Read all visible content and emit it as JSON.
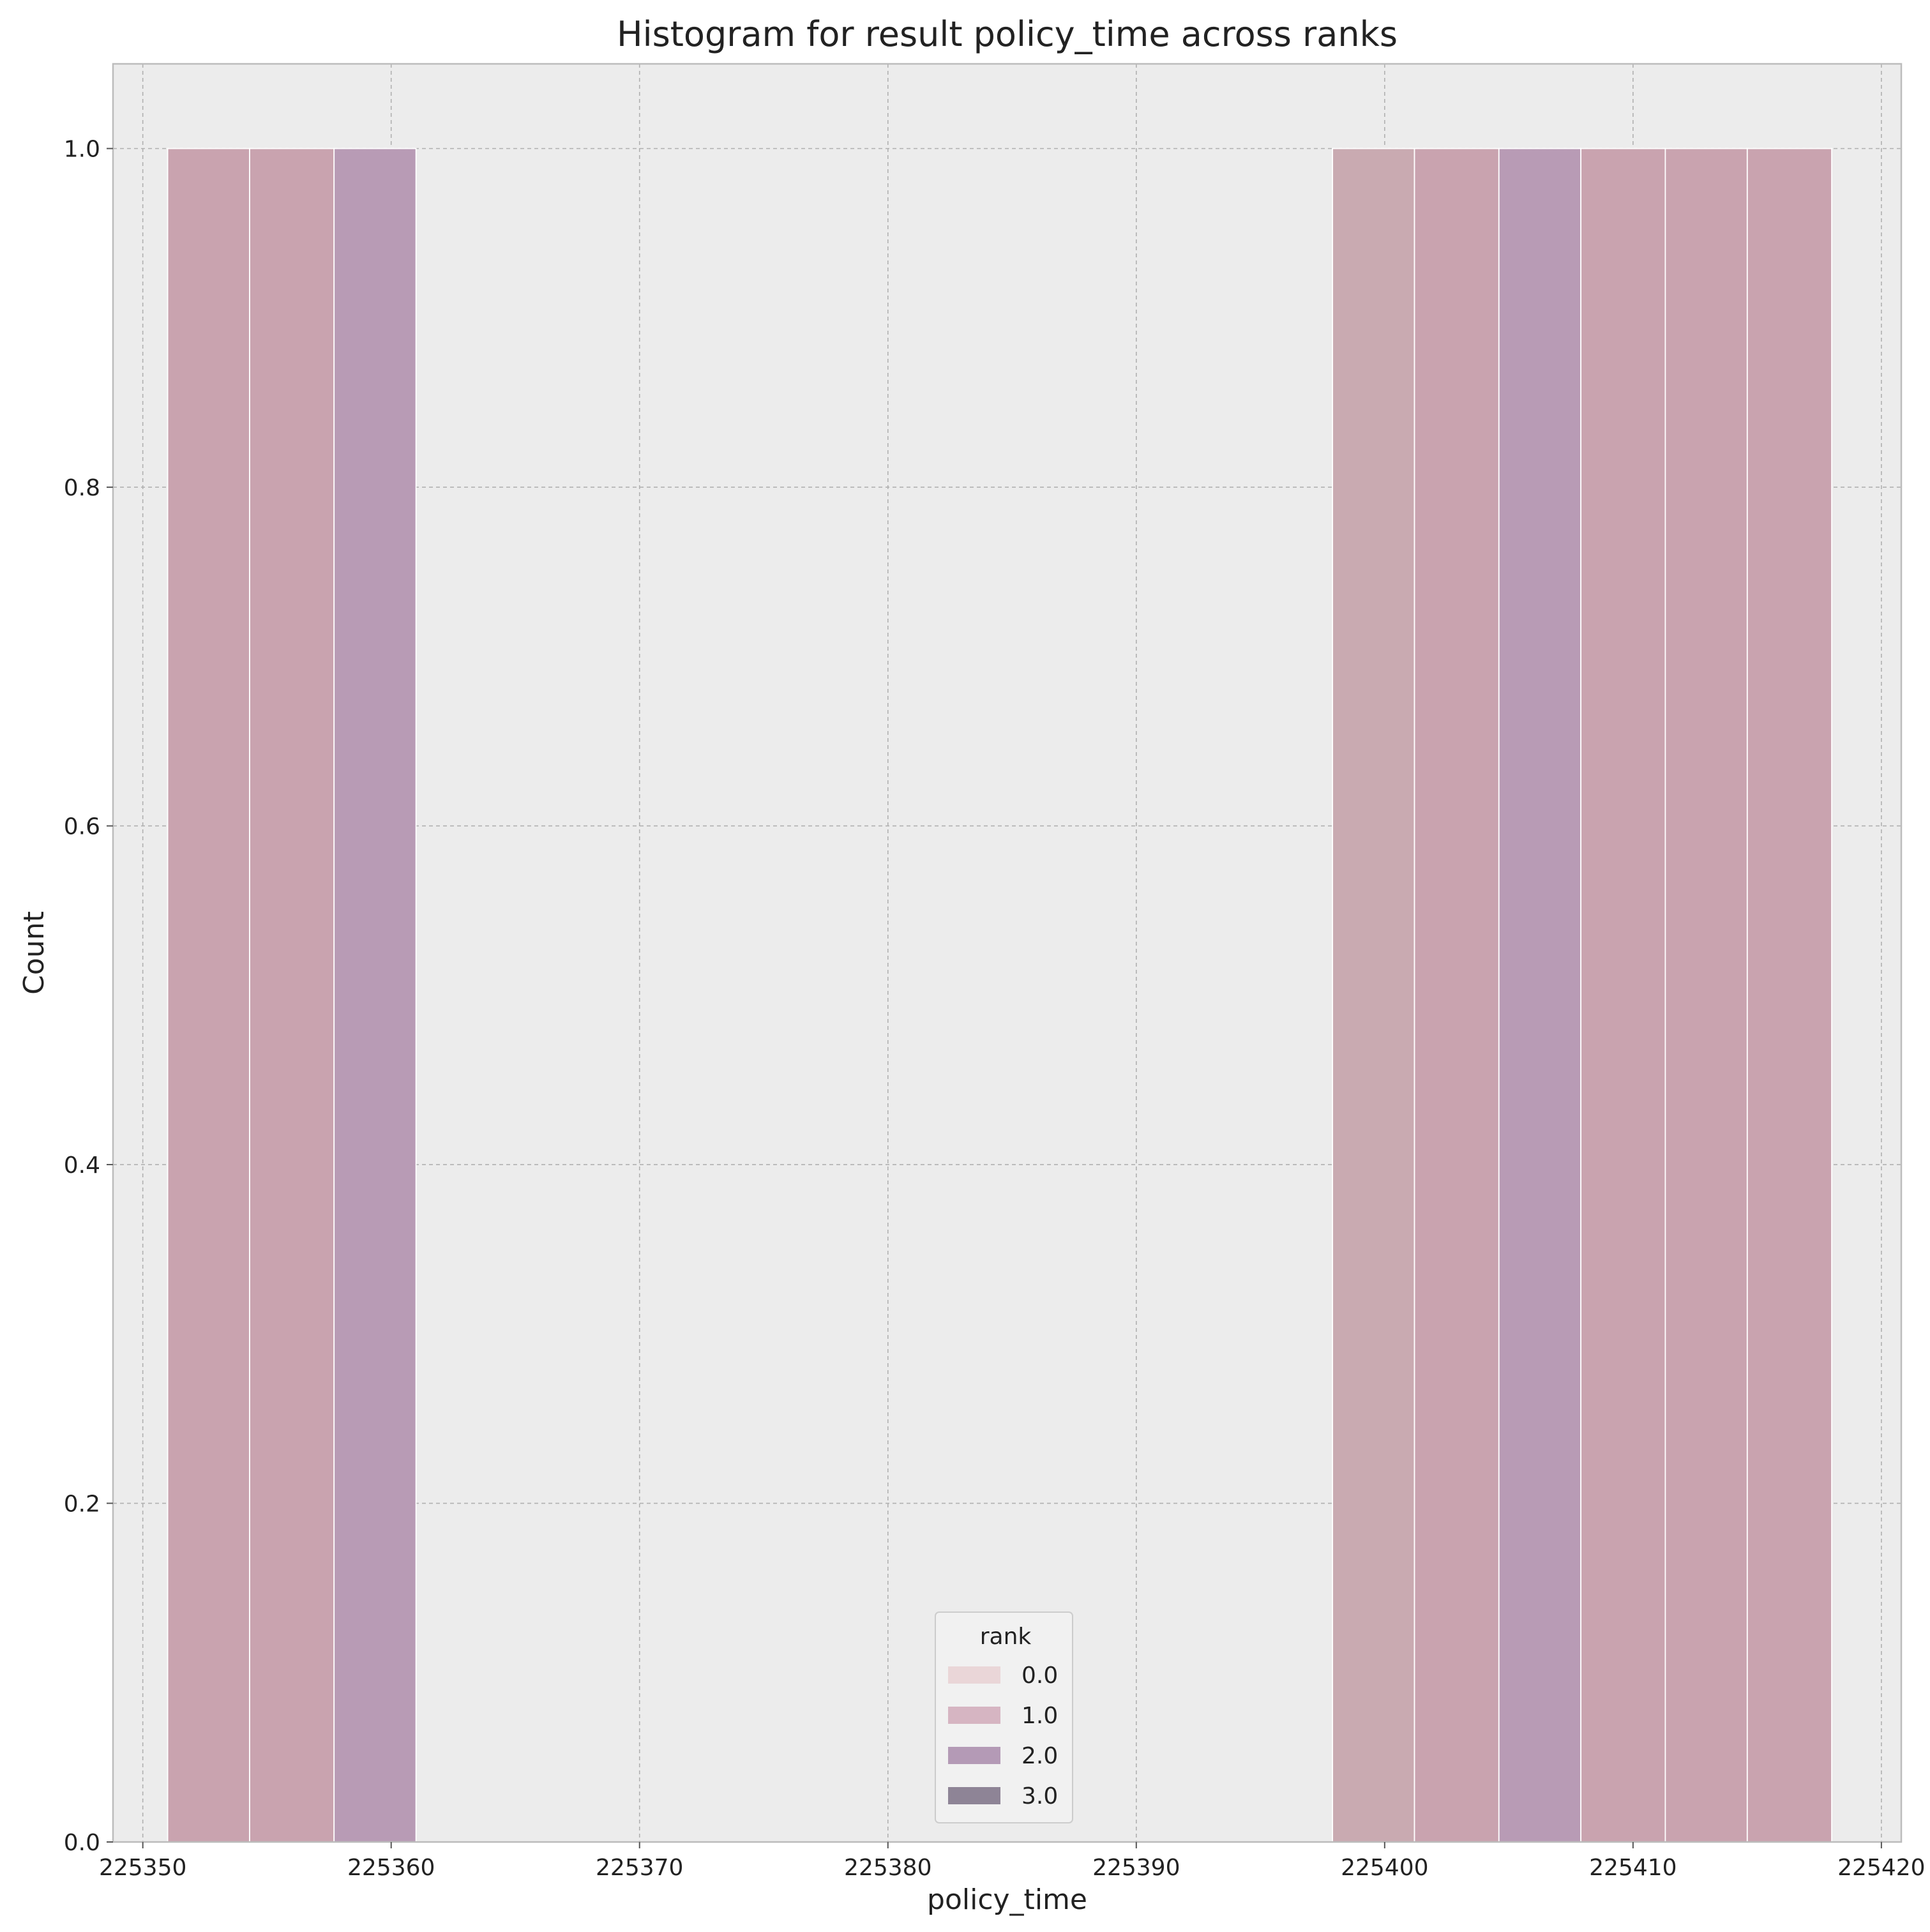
{
  "chart_data": {
    "type": "bar",
    "title": "Histogram for result policy_time across ranks",
    "xlabel": "policy_time",
    "ylabel": "Count",
    "xlim": [
      225348.8,
      225420.8
    ],
    "ylim": [
      0,
      1.05
    ],
    "x_ticks": [
      225350,
      225360,
      225370,
      225380,
      225390,
      225400,
      225410,
      225420
    ],
    "y_ticks": [
      0.0,
      0.2,
      0.4,
      0.6,
      0.8,
      1.0
    ],
    "x_tick_labels": [
      "225350",
      "225360",
      "225370",
      "225380",
      "225390",
      "225400",
      "225410",
      "225420"
    ],
    "y_tick_labels": [
      "0.0",
      "0.2",
      "0.4",
      "0.6",
      "0.8",
      "1.0"
    ],
    "grid": true,
    "legend": {
      "title": "rank",
      "placement": "bottom-center",
      "entries": [
        {
          "label": "0.0",
          "color": "#ead6d8"
        },
        {
          "label": "1.0",
          "color": "#d6b5c2"
        },
        {
          "label": "2.0",
          "color": "#b49ab6"
        },
        {
          "label": "3.0",
          "color": "#8e8496"
        }
      ]
    },
    "bars": [
      {
        "x0": 225351.0,
        "x1": 225354.3,
        "count": 1,
        "rank": "1.0",
        "color": "#c9a3af"
      },
      {
        "x0": 225354.3,
        "x1": 225357.7,
        "count": 1,
        "rank": "1.0",
        "color": "#c9a3af"
      },
      {
        "x0": 225357.7,
        "x1": 225361.0,
        "count": 1,
        "rank": "2.0",
        "color": "#b89bb5"
      },
      {
        "x0": 225397.9,
        "x1": 225401.2,
        "count": 1,
        "rank": "0.0",
        "color": "#c9aab1"
      },
      {
        "x0": 225401.2,
        "x1": 225404.6,
        "count": 1,
        "rank": "1.0",
        "color": "#c9a3af"
      },
      {
        "x0": 225404.6,
        "x1": 225407.9,
        "count": 1,
        "rank": "2.0",
        "color": "#b89bb5"
      },
      {
        "x0": 225407.9,
        "x1": 225411.3,
        "count": 1,
        "rank": "1.0",
        "color": "#c9a3af"
      },
      {
        "x0": 225411.3,
        "x1": 225414.6,
        "count": 1,
        "rank": "1.0",
        "color": "#c9a3af"
      },
      {
        "x0": 225414.6,
        "x1": 225418.0,
        "count": 1,
        "rank": "1.0",
        "color": "#c9a3af"
      }
    ],
    "colors": {
      "plot_background": "#ececec",
      "grid": "#b0b0b0",
      "axes_edge": "#bcbcbc",
      "bar_edge": "#ffffff"
    }
  }
}
